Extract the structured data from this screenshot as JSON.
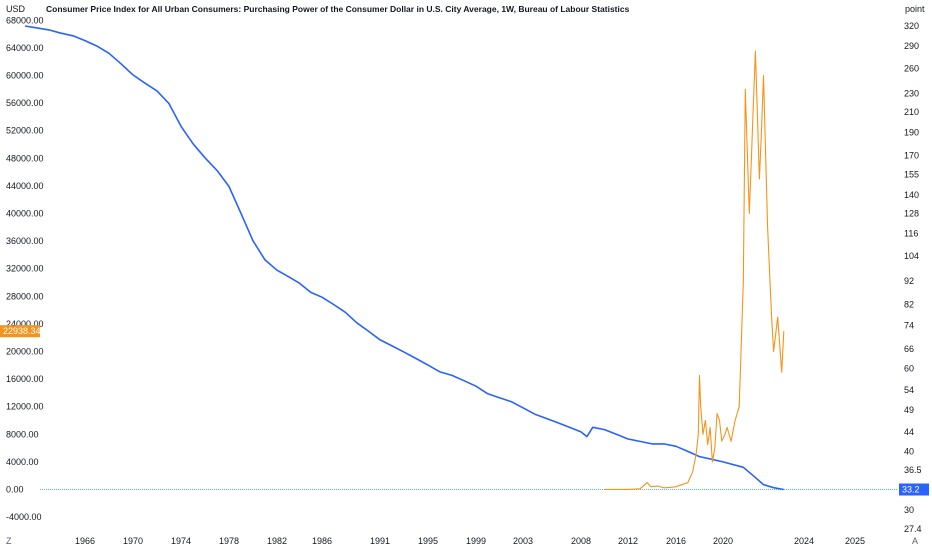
{
  "chart_data": {
    "type": "line",
    "title": "Consumer Price Index for All Urban Consumers: Purchasing Power of the Consumer Dollar in U.S. City Average, 1W, Bureau of Labour Statistics",
    "left_axis_unit": "USD",
    "right_axis_unit": "point",
    "left_ylim": [
      -5000,
      70000
    ],
    "left_ticks": [
      "-4000.00",
      "0.00",
      "4000.00",
      "8000.00",
      "12000.00",
      "16000.00",
      "20000.00",
      "24000.00",
      "28000.00",
      "32000.00",
      "36000.00",
      "40000.00",
      "44000.00",
      "48000.00",
      "52000.00",
      "56000.00",
      "60000.00",
      "64000.00",
      "68000.00"
    ],
    "right_ticks": [
      "27.4",
      "30",
      "33.2",
      "36.5",
      "40",
      "44",
      "49",
      "54",
      "60",
      "66",
      "74",
      "82",
      "92",
      "104",
      "116",
      "128",
      "140",
      "155",
      "170",
      "190",
      "210",
      "230",
      "260",
      "290",
      "320"
    ],
    "x_ticks": [
      "1966",
      "1970",
      "1974",
      "1978",
      "1982",
      "1986",
      "1991",
      "1995",
      "1999",
      "2003",
      "2008",
      "2012",
      "2016",
      "2020",
      "2024",
      "2025"
    ],
    "grid": false,
    "legend": "none",
    "corner_left": "Z",
    "corner_right": "A",
    "series": [
      {
        "axis": "right",
        "color": "#2962ff",
        "last_value_label": "33.2",
        "x": [
          1961.0,
          1962.0,
          1963.0,
          1964.0,
          1965.0,
          1966.0,
          1967.0,
          1968.0,
          1969.0,
          1970.0,
          1971.0,
          1972.0,
          1973.0,
          1974.0,
          1975.0,
          1976.0,
          1977.0,
          1978.0,
          1979.0,
          1980.0,
          1981.0,
          1982.0,
          1983.0,
          1984.0,
          1985.0,
          1986.0,
          1987.0,
          1988.0,
          1989.0,
          1990.0,
          1991.0,
          1992.0,
          1993.0,
          1994.0,
          1995.0,
          1996.0,
          1997.0,
          1998.0,
          1999.0,
          2000.0,
          2001.0,
          2002.0,
          2003.0,
          2004.0,
          2005.0,
          2006.0,
          2007.0,
          2008.0,
          2008.5,
          2009.0,
          2010.0,
          2011.0,
          2012.0,
          2013.0,
          2014.0,
          2015.0,
          2016.0,
          2017.0,
          2018.0,
          2019.0,
          2020.0,
          2021.0,
          2021.5,
          2022.0,
          2022.5,
          2023.0
        ],
        "y": [
          320,
          317,
          314,
          309,
          305,
          298,
          290,
          280,
          266,
          252,
          242,
          233,
          219,
          196,
          180,
          168,
          158,
          146,
          128,
          112,
          102,
          97,
          94,
          91,
          87,
          85,
          82,
          79,
          75,
          72,
          69,
          67,
          65,
          63,
          61,
          59,
          58,
          56.5,
          55,
          53,
          52,
          51,
          49.5,
          48,
          47,
          46,
          45,
          44,
          43,
          45,
          44.5,
          43.5,
          42.5,
          42,
          41.5,
          41.5,
          41,
          40,
          39,
          38.5,
          38,
          37,
          35.5,
          34,
          33.5,
          33.2
        ]
      },
      {
        "axis": "left",
        "color": "#f7931a",
        "last_value_label": "22938.34",
        "x": [
          2010.0,
          2011.0,
          2012.0,
          2013.0,
          2013.6,
          2013.9,
          2014.5,
          2015.0,
          2015.5,
          2016.0,
          2016.5,
          2017.0,
          2017.4,
          2017.7,
          2017.9,
          2018.0,
          2018.1,
          2018.3,
          2018.5,
          2018.7,
          2018.9,
          2019.1,
          2019.3,
          2019.5,
          2019.7,
          2019.9,
          2020.1,
          2020.2,
          2020.4,
          2020.6,
          2020.8,
          2021.0,
          2021.1,
          2021.3,
          2021.4,
          2021.5,
          2021.6,
          2021.8,
          2021.9,
          2022.0,
          2022.2,
          2022.4,
          2022.5,
          2022.7,
          2022.9,
          2023.0
        ],
        "y": [
          0,
          10,
          10,
          100,
          1000,
          400,
          500,
          250,
          300,
          400,
          700,
          1000,
          2500,
          5000,
          8000,
          16500,
          12000,
          8000,
          10000,
          6500,
          9000,
          4000,
          6000,
          11000,
          10000,
          7000,
          8000,
          9000,
          7000,
          10000,
          12000,
          30000,
          58000,
          40000,
          48000,
          56000,
          63500,
          45000,
          52000,
          60000,
          38000,
          25000,
          20000,
          25000,
          17000,
          22938.34
        ]
      }
    ]
  }
}
